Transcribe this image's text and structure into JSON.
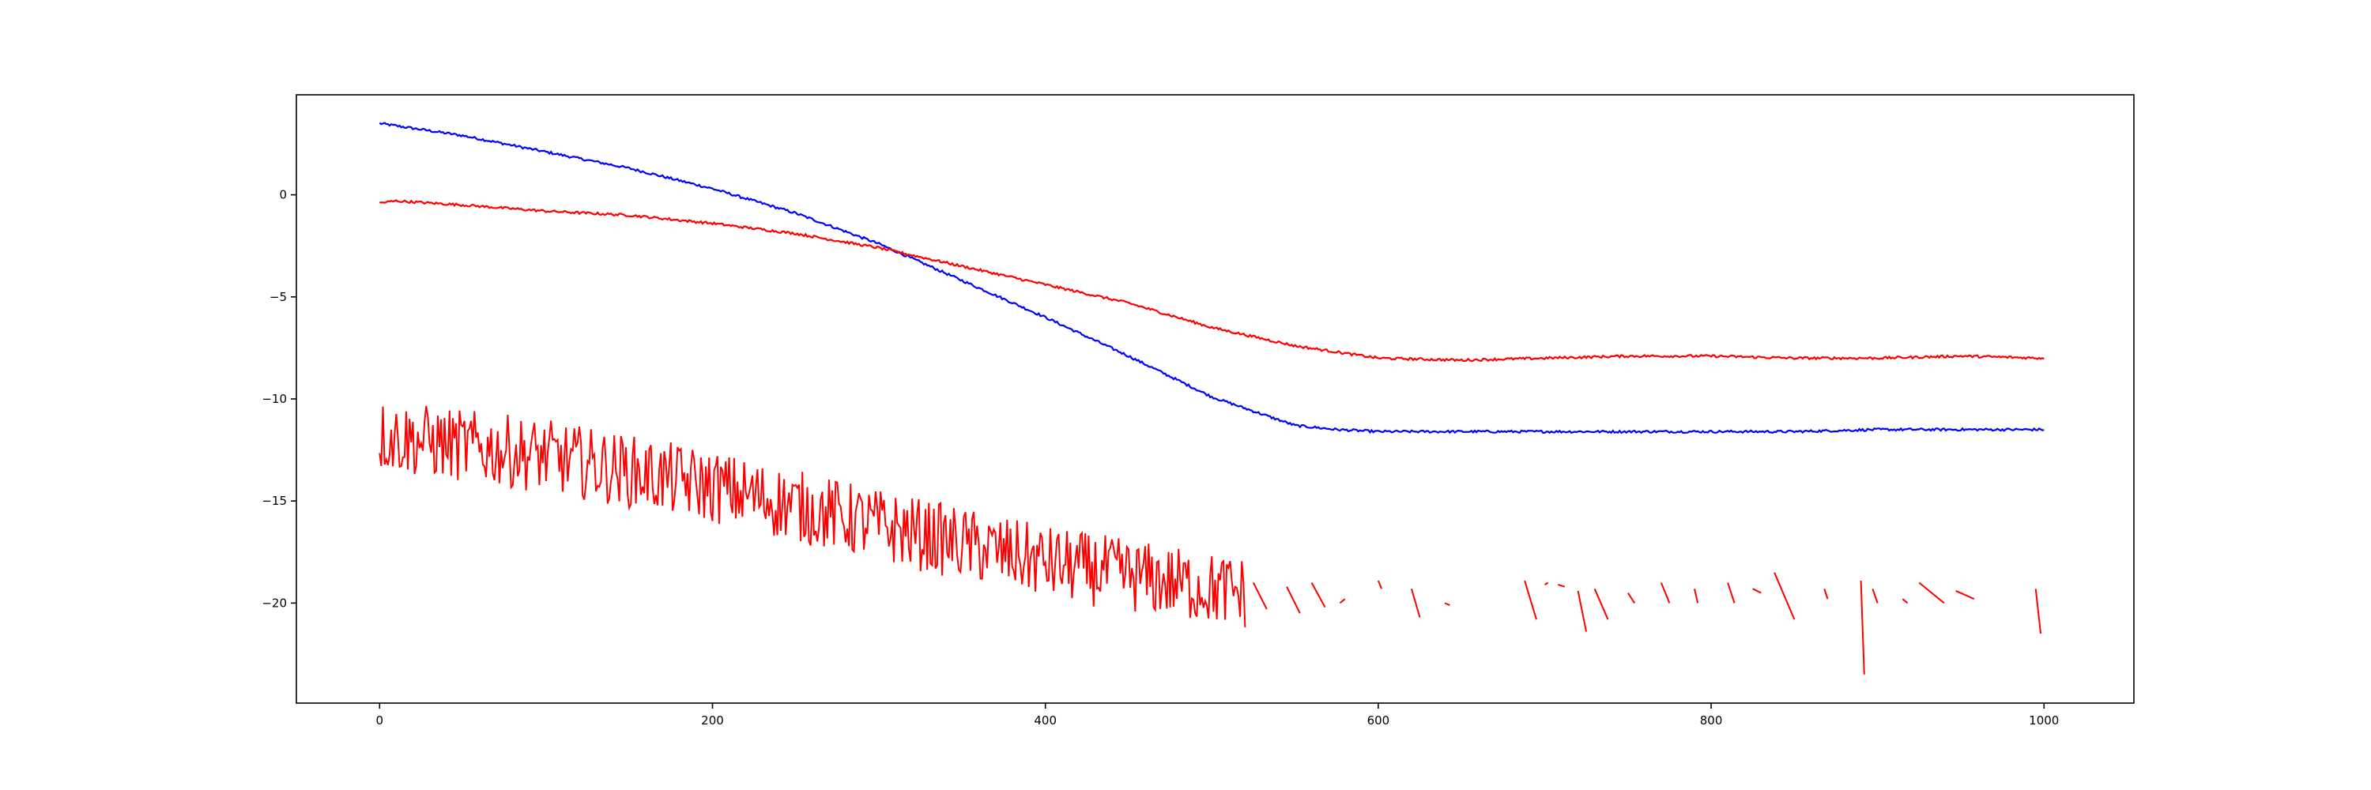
{
  "chart_data": {
    "type": "line",
    "title": "",
    "xlabel": "",
    "ylabel": "",
    "xlim": [
      -50,
      1054
    ],
    "ylim": [
      -24.9,
      4.9
    ],
    "x_ticks": [
      0,
      200,
      400,
      600,
      800,
      1000
    ],
    "x_tick_labels": [
      "0",
      "200",
      "400",
      "600",
      "800",
      "1000"
    ],
    "y_ticks": [
      0,
      -5,
      -10,
      -15,
      -20
    ],
    "y_tick_labels": [
      "0",
      "−5",
      "−10",
      "−15",
      "−20"
    ],
    "grid": false,
    "legend": "none",
    "series": [
      {
        "color": "#0000ff",
        "style": "smooth",
        "x": [
          0,
          50,
          100,
          150,
          200,
          250,
          300,
          350,
          400,
          450,
          500,
          550,
          575,
          600,
          650,
          700,
          750,
          800,
          850,
          900,
          950,
          1000
        ],
        "y": [
          3.5,
          2.9,
          2.1,
          1.3,
          0.3,
          -0.9,
          -2.4,
          -4.2,
          -6.0,
          -7.9,
          -9.9,
          -11.3,
          -11.5,
          -11.6,
          -11.6,
          -11.6,
          -11.6,
          -11.6,
          -11.6,
          -11.5,
          -11.5,
          -11.5
        ]
      },
      {
        "color": "#ff0000",
        "style": "smooth",
        "x": [
          0,
          10,
          50,
          100,
          150,
          200,
          250,
          300,
          350,
          400,
          450,
          500,
          550,
          575,
          600,
          650,
          700,
          750,
          800,
          850,
          900,
          950,
          1000
        ],
        "y": [
          -0.4,
          -0.3,
          -0.5,
          -0.8,
          -1.0,
          -1.4,
          -1.9,
          -2.6,
          -3.5,
          -4.4,
          -5.3,
          -6.5,
          -7.4,
          -7.7,
          -8.0,
          -8.1,
          -8.0,
          -7.9,
          -7.9,
          -8.0,
          -8.0,
          -7.9,
          -8.0
        ]
      },
      {
        "color": "#ff0000",
        "style": "noisy",
        "x": [
          0,
          100,
          200,
          300,
          400,
          500,
          520
        ],
        "y": [
          -11.8,
          -12.8,
          -14.3,
          -16.2,
          -18.0,
          -19.3,
          -19.5
        ],
        "noise_amplitude": 1.8,
        "gaps_after_x": 520,
        "fragments": [
          {
            "x": [
              525,
              533
            ],
            "y": [
              -19.0,
              -20.3
            ]
          },
          {
            "x": [
              545,
              553
            ],
            "y": [
              -19.2,
              -20.5
            ]
          },
          {
            "x": [
              560,
              568
            ],
            "y": [
              -19.0,
              -20.2
            ]
          },
          {
            "x": [
              577,
              580
            ],
            "y": [
              -20.0,
              -19.8
            ]
          },
          {
            "x": [
              600,
              602
            ],
            "y": [
              -18.9,
              -19.3
            ]
          },
          {
            "x": [
              620,
              625
            ],
            "y": [
              -19.3,
              -20.7
            ]
          },
          {
            "x": [
              640,
              643
            ],
            "y": [
              -20.0,
              -20.1
            ]
          },
          {
            "x": [
              688,
              695
            ],
            "y": [
              -18.9,
              -20.8
            ]
          },
          {
            "x": [
              700,
              702
            ],
            "y": [
              -19.1,
              -19.0
            ]
          },
          {
            "x": [
              708,
              712
            ],
            "y": [
              -19.1,
              -19.2
            ]
          },
          {
            "x": [
              720,
              725
            ],
            "y": [
              -19.4,
              -21.4
            ]
          },
          {
            "x": [
              730,
              738
            ],
            "y": [
              -19.3,
              -20.8
            ]
          },
          {
            "x": [
              750,
              754
            ],
            "y": [
              -19.5,
              -20.0
            ]
          },
          {
            "x": [
              770,
              775
            ],
            "y": [
              -19.0,
              -20.0
            ]
          },
          {
            "x": [
              790,
              792
            ],
            "y": [
              -19.3,
              -20.0
            ]
          },
          {
            "x": [
              810,
              814
            ],
            "y": [
              -19.0,
              -20.0
            ]
          },
          {
            "x": [
              825,
              830
            ],
            "y": [
              -19.3,
              -19.5
            ]
          },
          {
            "x": [
              838,
              850
            ],
            "y": [
              -18.5,
              -20.8
            ]
          },
          {
            "x": [
              868,
              870
            ],
            "y": [
              -19.3,
              -19.8
            ]
          },
          {
            "x": [
              890,
              892
            ],
            "y": [
              -18.9,
              -23.5
            ]
          },
          {
            "x": [
              897,
              900
            ],
            "y": [
              -19.3,
              -20.0
            ]
          },
          {
            "x": [
              915,
              918
            ],
            "y": [
              -19.8,
              -20.0
            ]
          },
          {
            "x": [
              925,
              940
            ],
            "y": [
              -19.0,
              -20.0
            ]
          },
          {
            "x": [
              947,
              958
            ],
            "y": [
              -19.4,
              -19.8
            ]
          },
          {
            "x": [
              995,
              998
            ],
            "y": [
              -19.3,
              -21.5
            ]
          }
        ]
      }
    ]
  }
}
